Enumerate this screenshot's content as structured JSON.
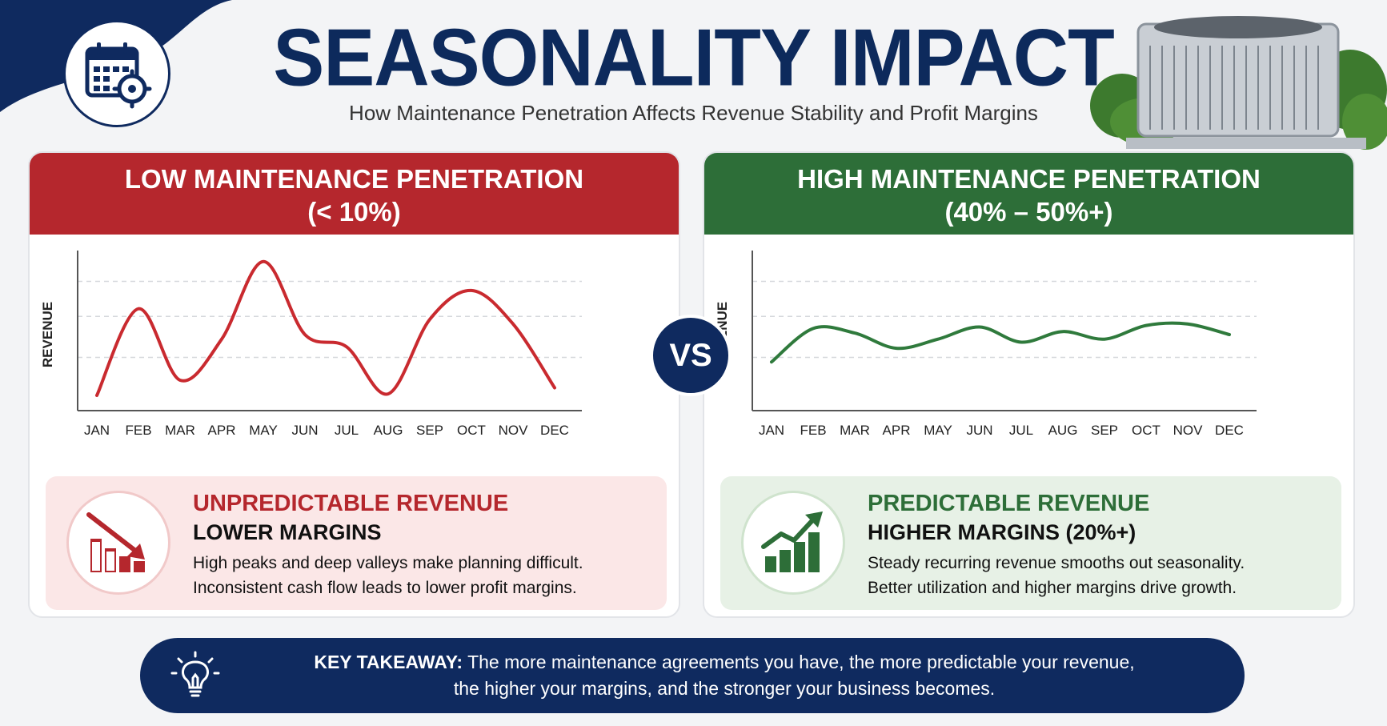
{
  "header": {
    "title": "SEASONALITY IMPACT",
    "subtitle": "How Maintenance Penetration Affects Revenue Stability and Profit Margins"
  },
  "colors": {
    "navy": "#0f2a5f",
    "low_red": "#b5272d",
    "high_green": "#2d6e38"
  },
  "icons": {
    "corner": "calendar-gear-icon",
    "low": "declining-bar-chart-icon",
    "high": "rising-bar-chart-icon",
    "takeaway": "lightbulb-icon",
    "decor": "air-conditioner-unit-icon"
  },
  "vs_label": "VS",
  "low_panel": {
    "header_line1": "LOW MAINTENANCE PENETRATION",
    "header_line2": "(< 10%)",
    "info_title": "UNPREDICTABLE REVENUE",
    "info_subtitle": "LOWER MARGINS",
    "info_line1": "High peaks and deep valleys make planning difficult.",
    "info_line2": "Inconsistent cash flow leads to lower profit margins."
  },
  "high_panel": {
    "header_line1": "HIGH MAINTENANCE PENETRATION",
    "header_line2": "(40% – 50%+)",
    "info_title": "PREDICTABLE REVENUE",
    "info_subtitle": "HIGHER MARGINS (20%+)",
    "info_line1": "Steady recurring revenue smooths out seasonality.",
    "info_line2": "Better utilization and higher margins drive growth."
  },
  "takeaway": {
    "label": "KEY TAKEAWAY:",
    "line1": "The more maintenance agreements you have, the more predictable your revenue,",
    "line2": "the higher your margins, and the stronger your business becomes."
  },
  "chart_data": [
    {
      "type": "line",
      "ylabel": "REVENUE",
      "categories": [
        "JAN",
        "FEB",
        "MAR",
        "APR",
        "MAY",
        "JUN",
        "JUL",
        "AUG",
        "SEP",
        "OCT",
        "NOV",
        "DEC"
      ],
      "series": [
        {
          "values": [
            10,
            67,
            20,
            47,
            98,
            50,
            42,
            11,
            60,
            79,
            57,
            15
          ],
          "color": "#c92a2f"
        }
      ],
      "ylim": [
        0,
        100
      ],
      "grid": true
    },
    {
      "type": "line",
      "ylabel": "REVENUE",
      "categories": [
        "JAN",
        "FEB",
        "MAR",
        "APR",
        "MAY",
        "JUN",
        "JUL",
        "AUG",
        "SEP",
        "OCT",
        "NOV",
        "DEC"
      ],
      "series": [
        {
          "values": [
            32,
            54,
            51,
            41,
            47,
            55,
            45,
            52,
            47,
            56,
            57,
            50
          ],
          "color": "#2f7a3c"
        }
      ],
      "ylim": [
        0,
        100
      ],
      "grid": true
    }
  ]
}
